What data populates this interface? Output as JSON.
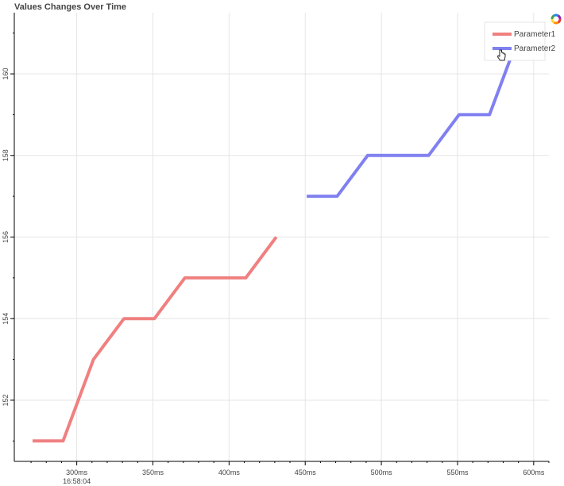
{
  "title": "Values Changes Over Time",
  "toolbar": {
    "logo_icon": "bokeh-logo-icon"
  },
  "chart_data": {
    "type": "line",
    "title": "Values Changes Over Time",
    "xlabel": "",
    "ylabel": "",
    "xlim": [
      259,
      610
    ],
    "ylim": [
      150.5,
      161.5
    ],
    "x_ticks": [
      300,
      350,
      400,
      450,
      500,
      550,
      600
    ],
    "x_tick_labels": [
      "300ms",
      "350ms",
      "400ms",
      "450ms",
      "500ms",
      "550ms",
      "600ms"
    ],
    "x_sub_label": "16:58:04",
    "y_ticks": [
      152,
      154,
      156,
      158,
      160
    ],
    "y_tick_labels": [
      "152",
      "154",
      "156",
      "158",
      "160"
    ],
    "grid": true,
    "legend_position": "top-right",
    "series": [
      {
        "name": "Parameter1",
        "color": "#f08080",
        "x": [
          271,
          291,
          311,
          331,
          351,
          371,
          391,
          411,
          431
        ],
        "y": [
          151,
          151,
          153,
          154,
          154,
          155,
          155,
          155,
          156
        ]
      },
      {
        "name": "Parameter2",
        "color": "#8080f0",
        "x": [
          451,
          471,
          491,
          511,
          531,
          551,
          571,
          591
        ],
        "y": [
          157,
          157,
          158,
          158,
          158,
          159,
          159,
          161
        ]
      }
    ]
  }
}
